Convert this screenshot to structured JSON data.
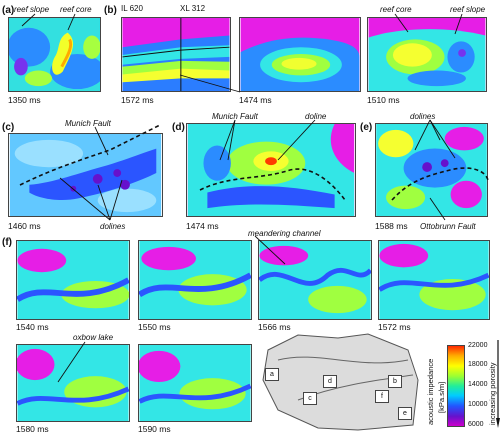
{
  "panels": {
    "a": {
      "label": "(a)",
      "time": "1350 ms",
      "annotations": {
        "reef_slope": "reef slope",
        "reef_core": "reef core"
      }
    },
    "b": {
      "label": "(b)",
      "times": [
        "1572 ms",
        "1474 ms",
        "1510 ms"
      ],
      "annotations": {
        "inline": "IL 620",
        "xline": "XL 312",
        "reef_core": "reef core",
        "reef_slope": "reef slope"
      }
    },
    "c": {
      "label": "(c)",
      "time": "1460 ms",
      "annotations": {
        "fault": "Munich Fault",
        "dolines": "dolines"
      }
    },
    "d": {
      "label": "(d)",
      "time": "1474 ms",
      "annotations": {
        "fault": "Munich Fault",
        "doline": "doline"
      }
    },
    "e": {
      "label": "(e)",
      "time": "1588 ms",
      "annotations": {
        "dolines": "dolines",
        "fault": "Ottobrunn Fault"
      }
    },
    "f": {
      "label": "(f)",
      "times": [
        "1540 ms",
        "1550 ms",
        "1566 ms",
        "1572 ms",
        "1580 ms",
        "1590 ms"
      ],
      "annotations": {
        "channel": "meandering channel",
        "oxbow": "oxbow lake"
      }
    }
  },
  "location_map": {
    "boxes": [
      "a",
      "b",
      "c",
      "d",
      "e",
      "f"
    ]
  },
  "colorbar": {
    "title": "acoustic impedance",
    "unit": "[kPa.s/m]",
    "ticks": [
      "22000",
      "18000",
      "14000",
      "10000",
      "6000"
    ],
    "arrow_label": "increasing porosity",
    "colors": [
      "#ff2a00",
      "#ffaa00",
      "#ffff00",
      "#99ff33",
      "#22ee99",
      "#00ccff",
      "#2255ff",
      "#6611cc",
      "#cc00cc"
    ]
  }
}
